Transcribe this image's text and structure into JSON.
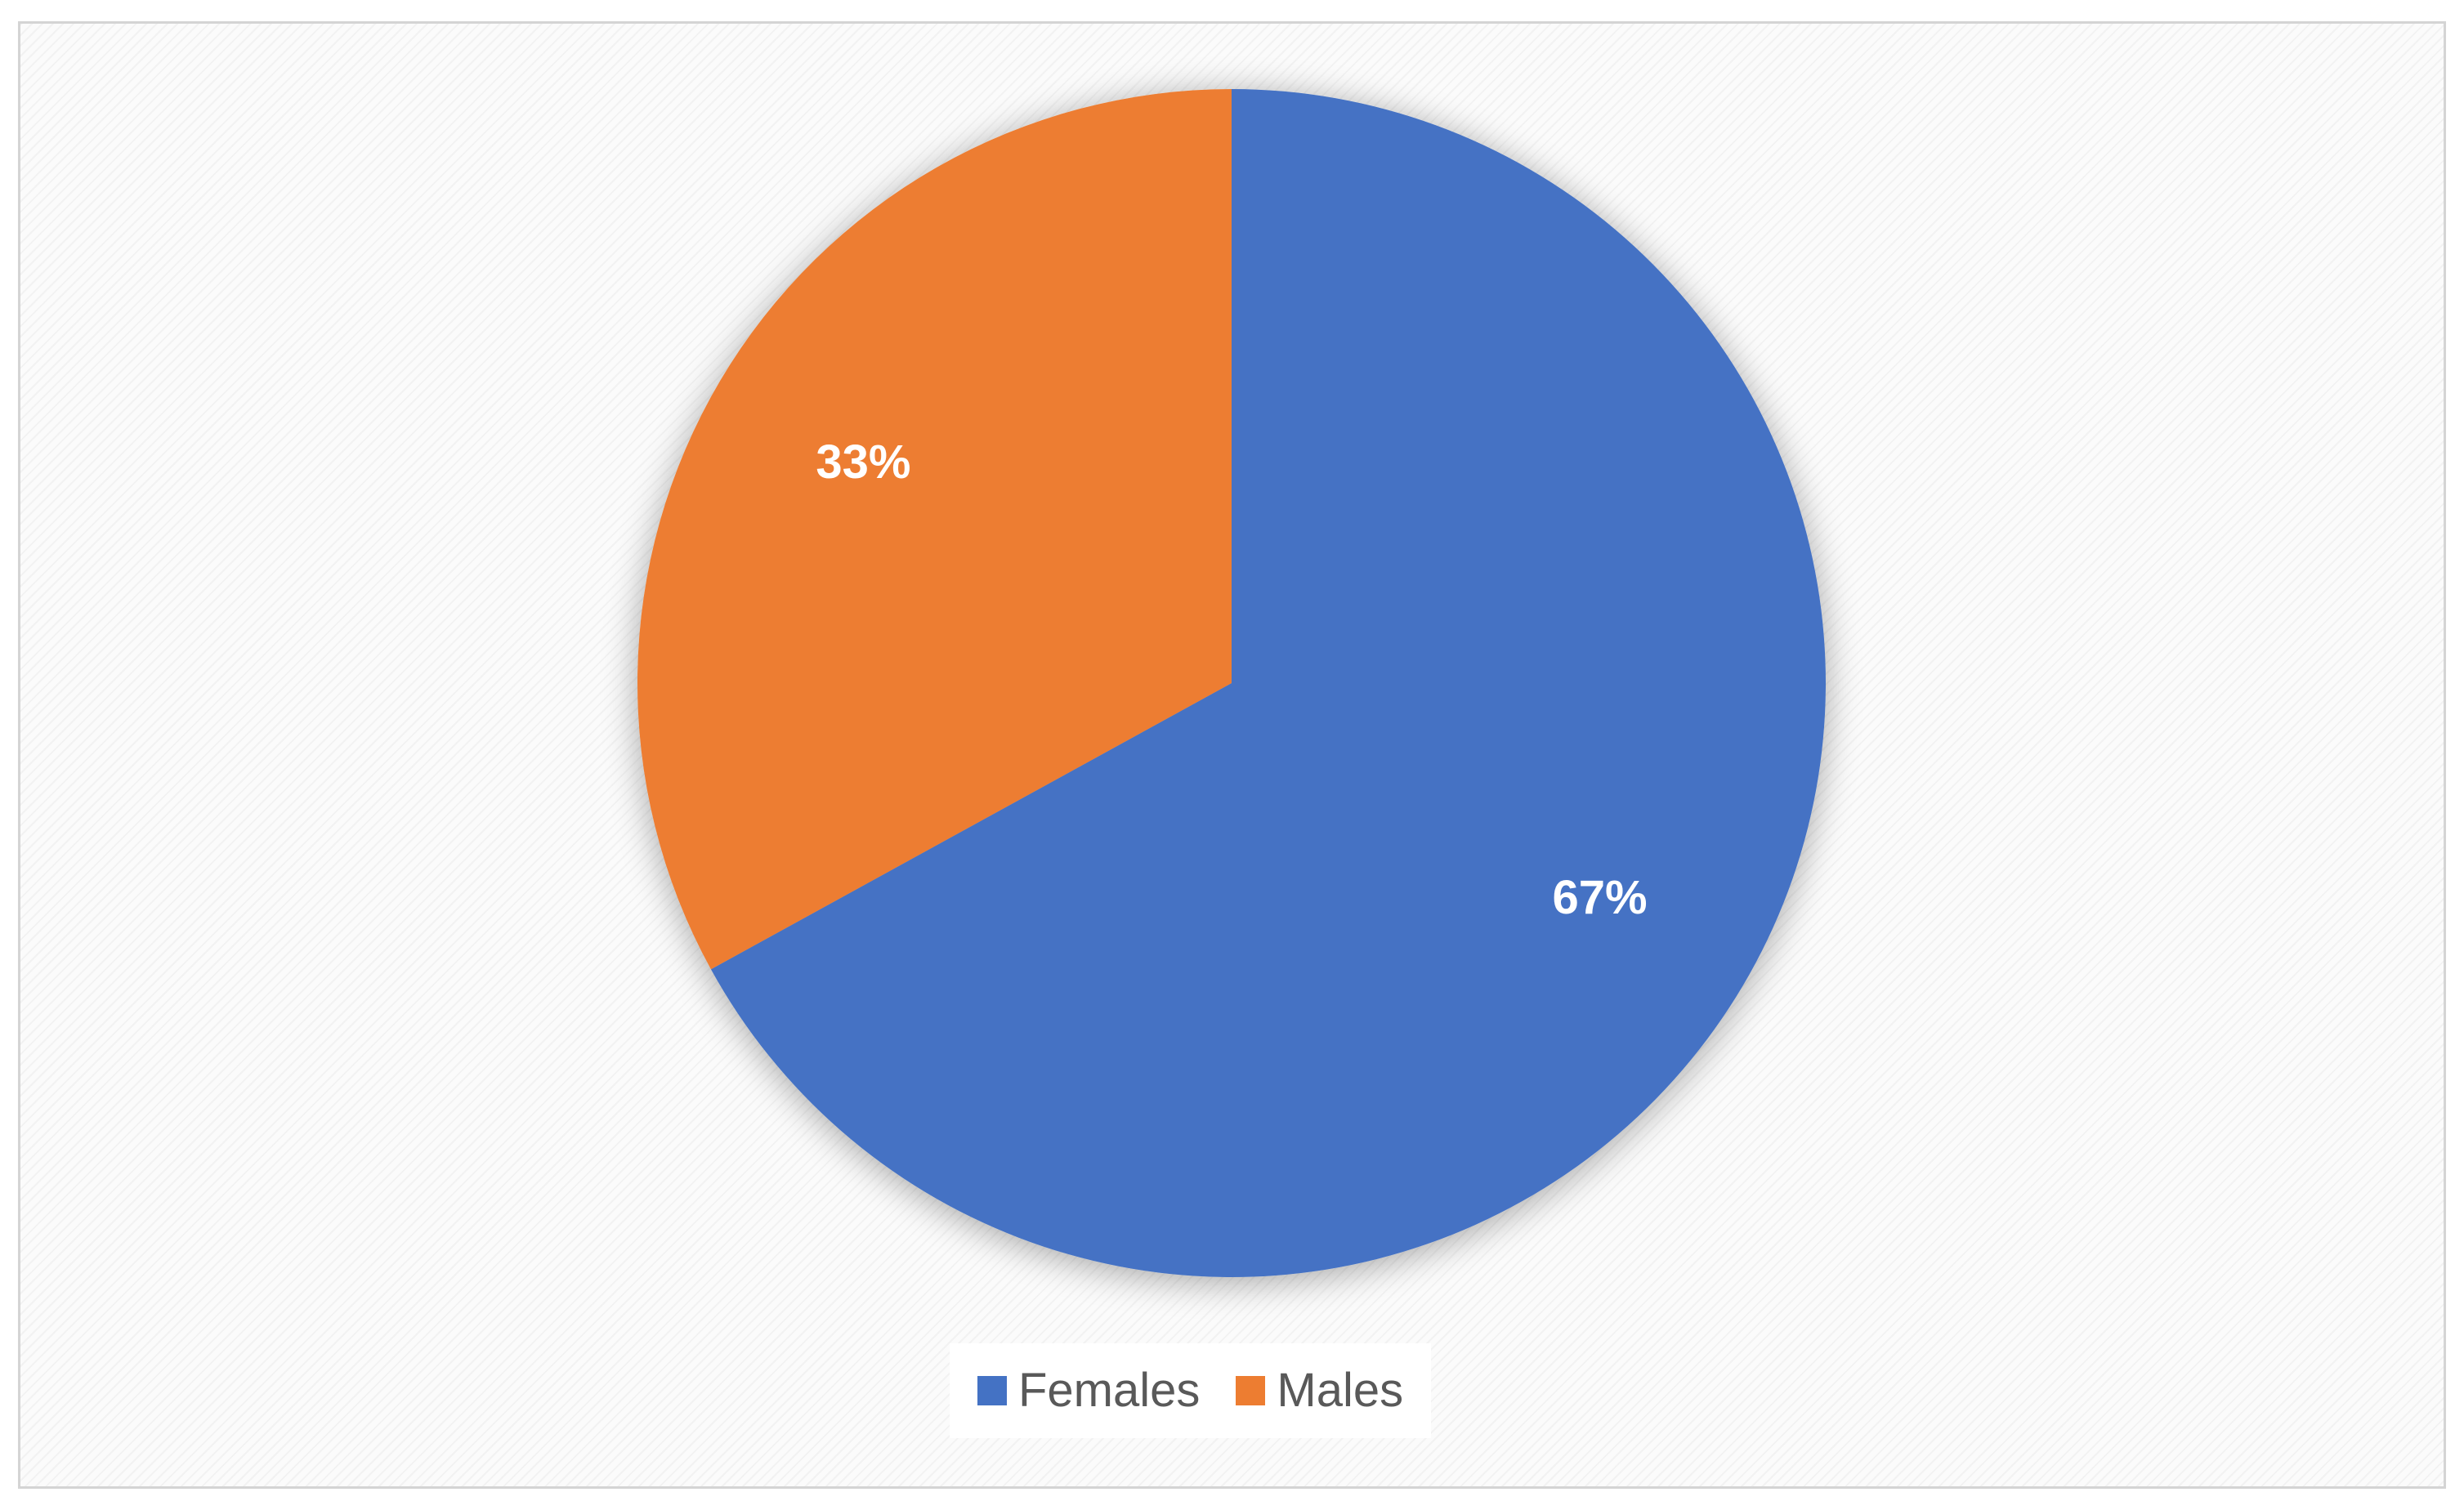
{
  "chart_data": {
    "type": "pie",
    "title": "",
    "categories": [
      "Females",
      "Males"
    ],
    "values": [
      67,
      33
    ],
    "data_labels": [
      "67%",
      "33%"
    ],
    "colors": [
      "#4472C4",
      "#ED7D31"
    ],
    "start_angle_deg": 0,
    "direction": "clockwise",
    "legend_position": "bottom",
    "legend": [
      {
        "label": "Females",
        "color": "#4472C4"
      },
      {
        "label": "Males",
        "color": "#ED7D31"
      }
    ]
  }
}
